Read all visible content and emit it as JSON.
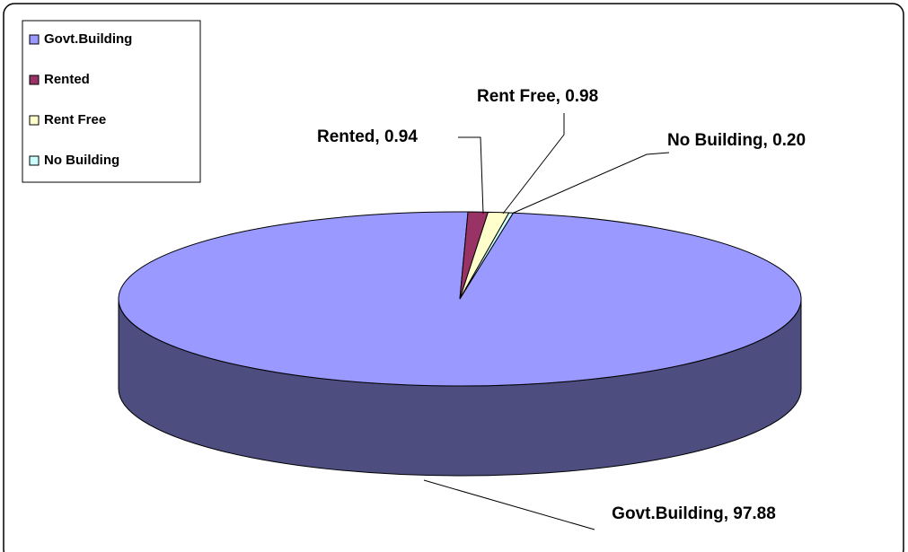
{
  "chart_data": {
    "type": "pie3d",
    "categories": [
      "Govt.Building",
      "Rented",
      "Rent Free",
      "No Building"
    ],
    "values": [
      97.88,
      0.94,
      0.98,
      0.2
    ],
    "value_labels": [
      "Govt.Building, 97.88",
      "Rented, 0.94",
      "Rent Free, 0.98",
      "No Building, 0.20"
    ],
    "colors": [
      "#9999ff",
      "#993366",
      "#ffffcc",
      "#ccffff"
    ],
    "legend": "upper left"
  }
}
